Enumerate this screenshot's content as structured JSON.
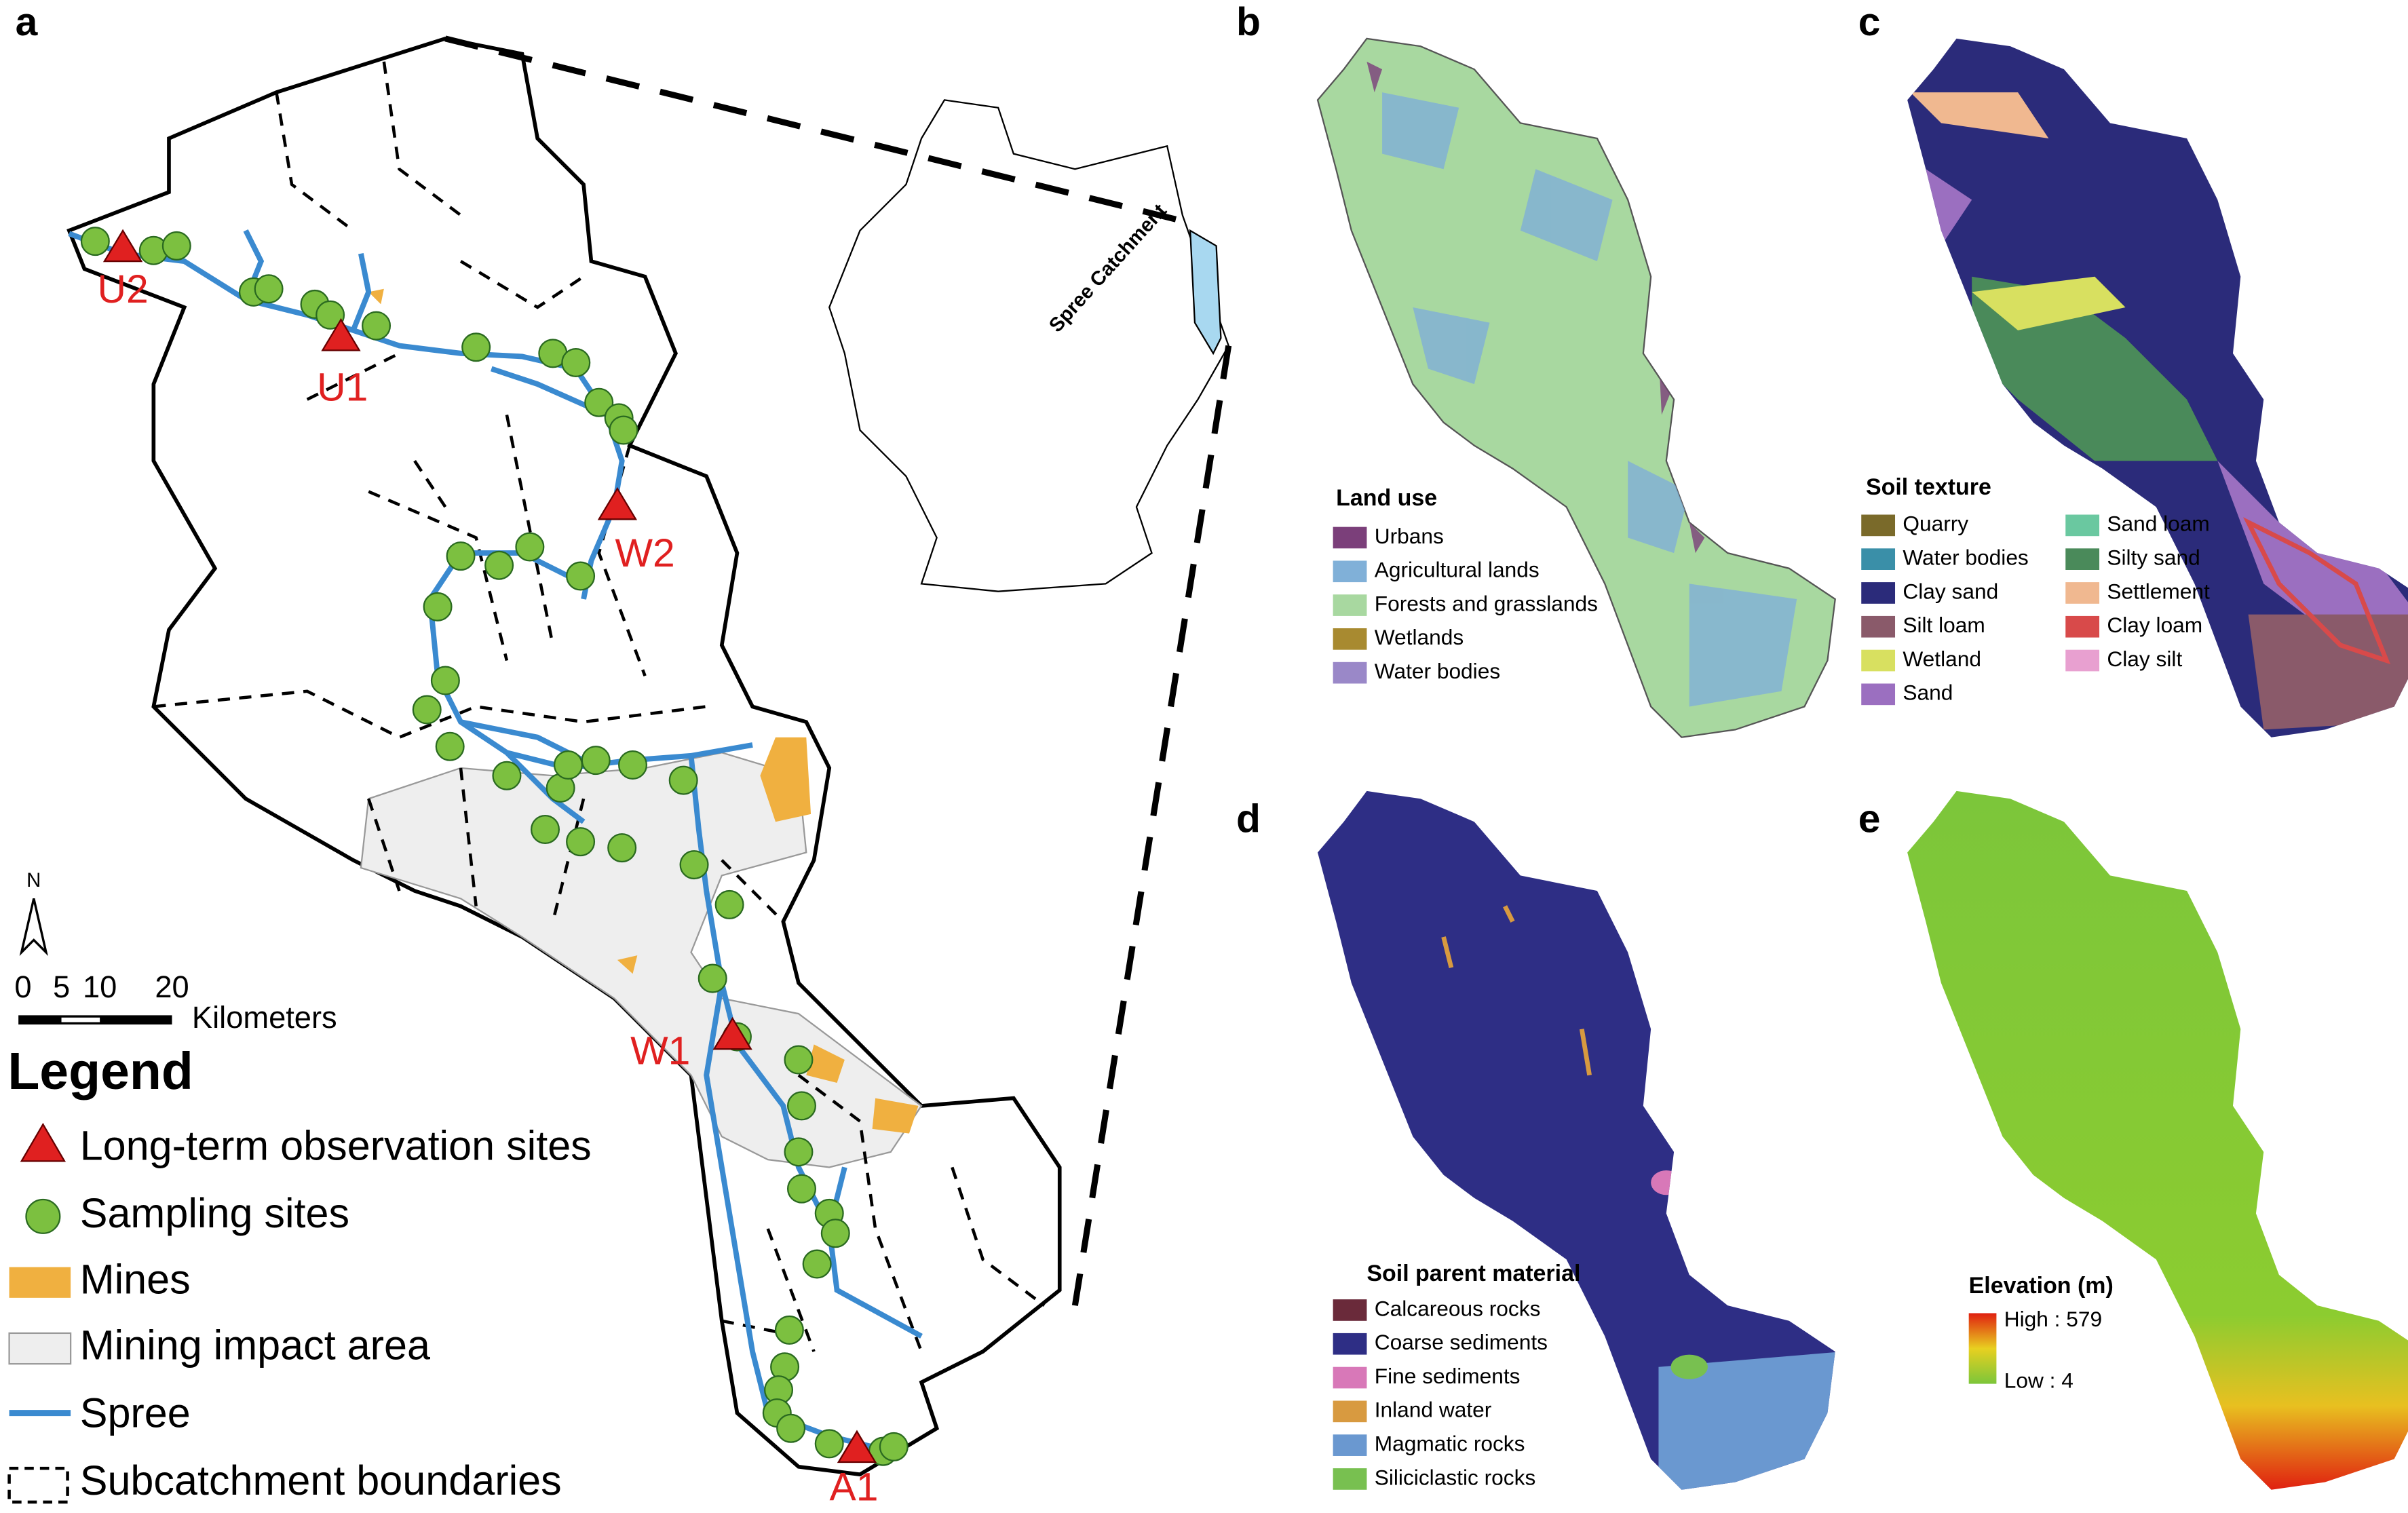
{
  "panels": {
    "a": "a",
    "b": "b",
    "c": "c",
    "d": "d",
    "e": "e"
  },
  "map_a": {
    "sites": [
      "U2",
      "U1",
      "W2",
      "W1",
      "A1"
    ],
    "inset_label": "Spree Catchment",
    "north": "N",
    "scale": [
      "0",
      "5",
      "10",
      "20"
    ],
    "scale_unit": "Kilometers",
    "legend": {
      "title": "Legend",
      "items": [
        "Long-term observation sites",
        "Sampling sites",
        "Mines",
        "Mining impact area",
        "Spree",
        "Subcatchment boundaries"
      ]
    }
  },
  "land_use": {
    "title": "Land use",
    "items": [
      {
        "label": "Urbans",
        "color": "#7b3f7a"
      },
      {
        "label": "Agricultural lands",
        "color": "#80b0d8"
      },
      {
        "label": "Forests and grasslands",
        "color": "#a8d8a0"
      },
      {
        "label": "Wetlands",
        "color": "#a88a30"
      },
      {
        "label": "Water bodies",
        "color": "#9a88c8"
      }
    ]
  },
  "soil_texture": {
    "title": "Soil texture",
    "items": [
      {
        "label": "Quarry",
        "color": "#7a6a2a"
      },
      {
        "label": "Water bodies",
        "color": "#3a8fa8"
      },
      {
        "label": "Clay sand",
        "color": "#2b2b7a"
      },
      {
        "label": "Silt loam",
        "color": "#8a5a6a"
      },
      {
        "label": "Wetland",
        "color": "#d8e060"
      },
      {
        "label": "Sand",
        "color": "#9b6fc0"
      },
      {
        "label": "Sand loam",
        "color": "#6ac8a0"
      },
      {
        "label": "Silty sand",
        "color": "#4a8a5a"
      },
      {
        "label": "Settlement",
        "color": "#f0b890"
      },
      {
        "label": "Clay loam",
        "color": "#d84a4a"
      },
      {
        "label": "Clay silt",
        "color": "#e8a0d0"
      }
    ]
  },
  "soil_parent": {
    "title": "Soil parent material",
    "items": [
      {
        "label": "Calcareous rocks",
        "color": "#6a2a3a"
      },
      {
        "label": "Coarse sediments",
        "color": "#2e2e85"
      },
      {
        "label": "Fine sediments",
        "color": "#d878b8"
      },
      {
        "label": "Inland water",
        "color": "#d89a40"
      },
      {
        "label": "Magmatic rocks",
        "color": "#6a98d0"
      },
      {
        "label": "Siliciclastic rocks",
        "color": "#78c050"
      }
    ]
  },
  "elevation": {
    "title": "Elevation (m)",
    "high": "High : 579",
    "low": "Low : 4"
  }
}
